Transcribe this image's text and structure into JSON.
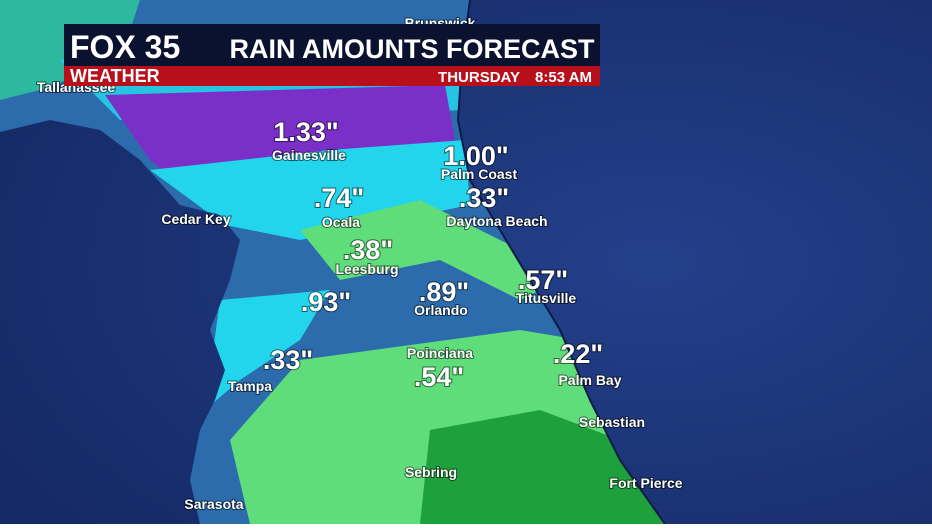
{
  "header": {
    "brand": "FOX 35",
    "brand_sub": "WEATHER",
    "title": "RAIN AMOUNTS FORECAST",
    "day": "THURSDAY",
    "time": "8:53 AM"
  },
  "amounts": [
    "1.33\"",
    "1.00\"",
    ".74\"",
    ".33\"",
    ".38\"",
    ".89\"",
    ".57\"",
    ".93\"",
    ".33\"",
    ".54\"",
    ".22\""
  ],
  "cities": [
    "Brunswick",
    "Tallahassee",
    "Gainesville",
    "Palm Coast",
    "Cedar Key",
    "Ocala",
    "Daytona Beach",
    "Leesburg",
    "Orlando",
    "Titusville",
    "Poinciana",
    "Tampa",
    "Palm Bay",
    "Sebastian",
    "Sebring",
    "Fort Pierce",
    "Sarasota"
  ]
}
